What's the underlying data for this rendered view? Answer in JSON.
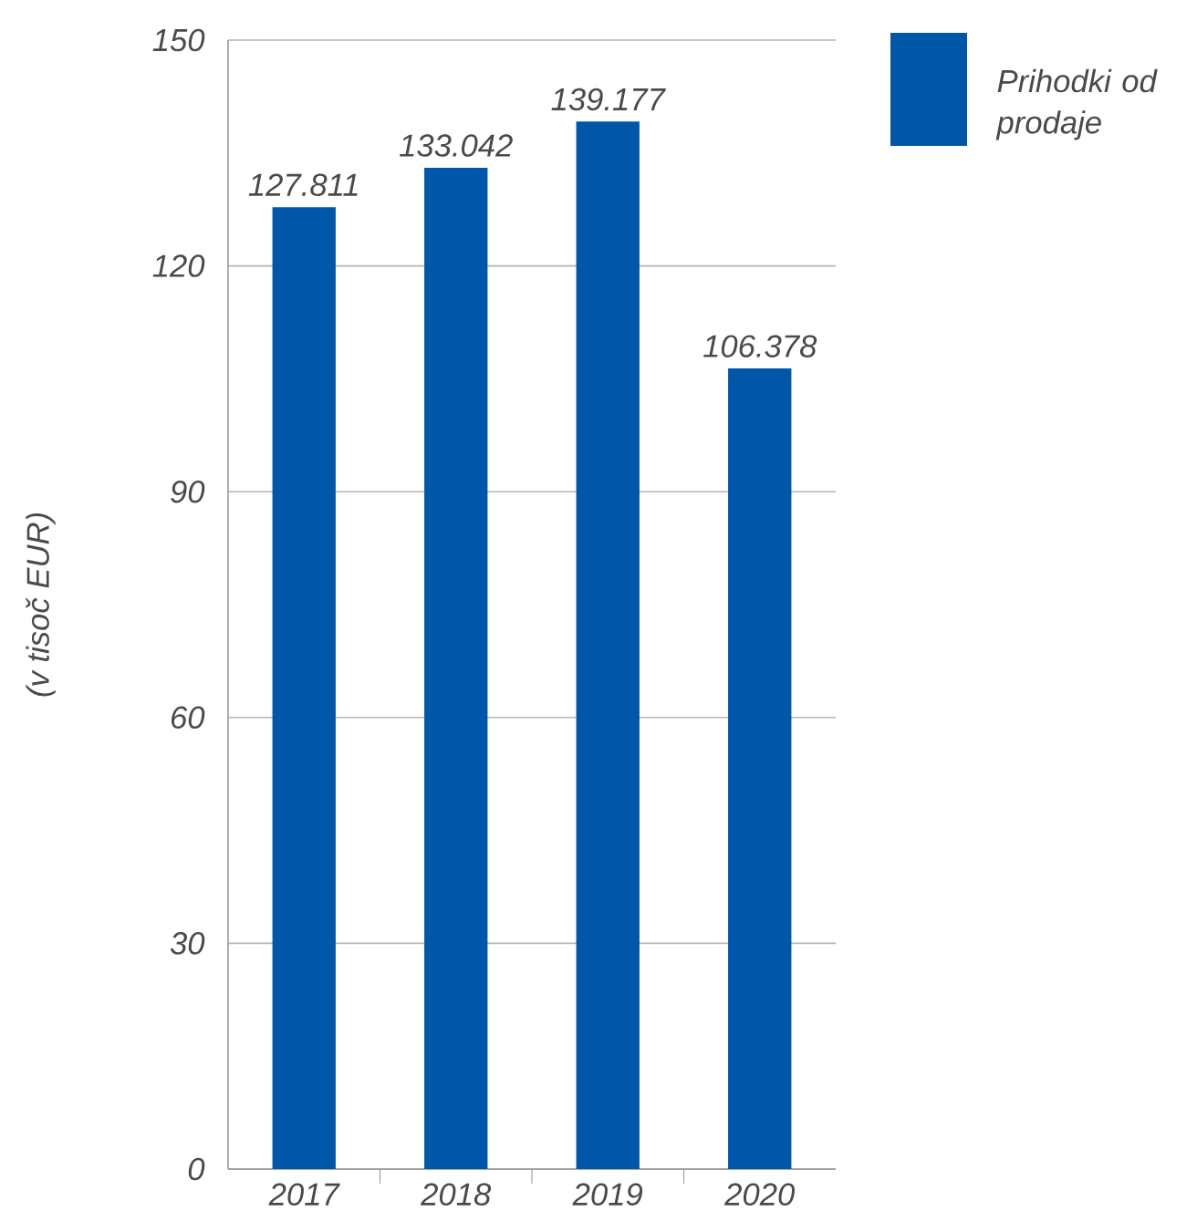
{
  "chart_data": {
    "type": "bar",
    "ylabel": "(v tisoč EUR)",
    "categories": [
      "2017",
      "2018",
      "2019",
      "2020"
    ],
    "series": [
      {
        "name": "Prihodki od prodaje",
        "color": "#0057a8",
        "values": [
          127.811,
          133.042,
          139.177,
          106.378
        ]
      }
    ],
    "ylim": [
      0,
      150
    ],
    "yticks": [
      0,
      30,
      60,
      90,
      120,
      150
    ],
    "grid": "y",
    "legend": "top right",
    "data_labels": true
  }
}
